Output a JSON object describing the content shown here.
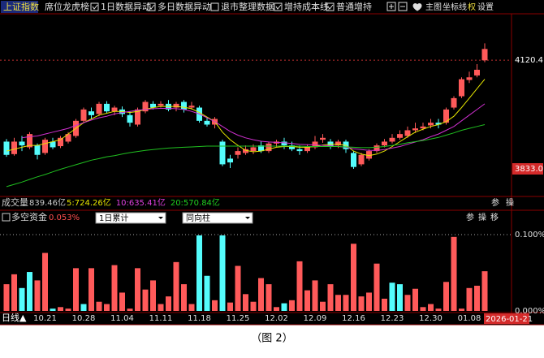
{
  "toolbar": {
    "index_name": "上证指数",
    "items": [
      {
        "label": "席位龙虎榜"
      },
      {
        "label": "1日数据异动",
        "checked": true
      },
      {
        "label": "多日数据异动",
        "checked": true
      },
      {
        "label": "退市整理数据",
        "checked": false
      },
      {
        "label": "增持成本线",
        "checked": true
      },
      {
        "label": "普通增持",
        "checked": true
      }
    ],
    "right": [
      "主图",
      "坐标线",
      "权",
      "设置"
    ]
  },
  "volume_row": {
    "label": "成交量",
    "total": "839.46亿",
    "ma": [
      {
        "text": "5:724.26亿",
        "color": "#e6e600"
      },
      {
        "text": "10:635.41亿",
        "color": "#e040e0"
      },
      {
        "text": "20:570.84亿",
        "color": "#20d020"
      }
    ],
    "icons": [
      "参",
      "操"
    ]
  },
  "chart_data": [
    {
      "type": "candlestick",
      "categories": [
        null,
        null,
        null,
        null,
        null,
        "10.21",
        null,
        null,
        null,
        null,
        "10.28",
        null,
        null,
        null,
        null,
        "11.04",
        null,
        null,
        null,
        null,
        "11.11",
        null,
        null,
        null,
        null,
        "11.18",
        null,
        null,
        null,
        null,
        "11.25",
        null,
        null,
        null,
        null,
        "12.02",
        null,
        null,
        null,
        null,
        "12.09",
        null,
        null,
        null,
        null,
        "12.16",
        null,
        null,
        null,
        null,
        "12.23",
        null,
        null,
        null,
        null,
        "12.30",
        null,
        null,
        null,
        null,
        "01.08",
        null,
        null
      ],
      "open": [
        3905,
        3872,
        3905,
        3890,
        3895,
        3875,
        3905,
        3893,
        3905,
        3920,
        3960,
        3985,
        3978,
        4005,
        3985,
        3990,
        3975,
        3950,
        3985,
        4005,
        4000,
        4005,
        3995,
        4010,
        3995,
        3995,
        3960,
        3950,
        3905,
        3860,
        3870,
        3875,
        3880,
        3895,
        3880,
        3900,
        3905,
        3895,
        3885,
        3880,
        3890,
        3910,
        3905,
        3895,
        3905,
        3875,
        3845,
        3860,
        3880,
        3895,
        3905,
        3915,
        3920,
        3935,
        3940,
        3948,
        3955,
        3955,
        3995,
        4025,
        4068,
        4080,
        4120
      ],
      "high": [
        3912,
        3915,
        3920,
        3930,
        3900,
        3915,
        3915,
        3920,
        3930,
        3965,
        3995,
        3995,
        4010,
        4012,
        4000,
        3998,
        3985,
        3995,
        4015,
        4012,
        4012,
        4015,
        4010,
        4015,
        4010,
        4000,
        3970,
        3970,
        3910,
        3870,
        3890,
        3895,
        3898,
        3905,
        3905,
        3910,
        3915,
        3905,
        3895,
        3898,
        3920,
        3925,
        3912,
        3910,
        3910,
        3880,
        3875,
        3885,
        3900,
        3912,
        3925,
        3935,
        3945,
        3955,
        3955,
        3965,
        3965,
        3995,
        4025,
        4075,
        4090,
        4110,
        4165
      ],
      "low": [
        3865,
        3868,
        3880,
        3885,
        3858,
        3870,
        3885,
        3888,
        3900,
        3915,
        3955,
        3965,
        3972,
        3980,
        3975,
        3970,
        3945,
        3945,
        3980,
        3990,
        3995,
        3985,
        3985,
        3982,
        3990,
        3955,
        3945,
        3940,
        3840,
        3835,
        3860,
        3870,
        3872,
        3875,
        3875,
        3890,
        3885,
        3880,
        3870,
        3875,
        3885,
        3902,
        3885,
        3888,
        3875,
        3833,
        3840,
        3855,
        3875,
        3890,
        3900,
        3910,
        3915,
        3928,
        3935,
        3940,
        3940,
        3950,
        3990,
        4020,
        4060,
        4075,
        4115
      ],
      "close": [
        3870,
        3905,
        3895,
        3925,
        3870,
        3910,
        3890,
        3915,
        3925,
        3960,
        3990,
        3975,
        4005,
        3985,
        3995,
        3978,
        3955,
        3990,
        4010,
        3995,
        4005,
        3990,
        4005,
        3990,
        4000,
        3960,
        3950,
        3965,
        3845,
        3850,
        3880,
        3885,
        3890,
        3880,
        3900,
        3905,
        3895,
        3885,
        3880,
        3890,
        3905,
        3915,
        3892,
        3905,
        3885,
        3838,
        3870,
        3880,
        3895,
        3905,
        3915,
        3925,
        3935,
        3940,
        3945,
        3955,
        3950,
        3990,
        4020,
        4070,
        4075,
        4095,
        4150
      ],
      "up_color": "#ff5a5a",
      "down_color": "#54fcfc",
      "lines": [
        {
          "color": "#e6e600",
          "values": [
            3880,
            3885,
            3890,
            3895,
            3895,
            3900,
            3905,
            3910,
            3925,
            3940,
            3955,
            3965,
            3975,
            3980,
            3985,
            3985,
            3982,
            3985,
            3990,
            3995,
            3998,
            3998,
            3998,
            3996,
            3992,
            3982,
            3970,
            3958,
            3930,
            3910,
            3895,
            3882,
            3878,
            3880,
            3885,
            3890,
            3892,
            3892,
            3890,
            3890,
            3892,
            3896,
            3898,
            3898,
            3895,
            3880,
            3872,
            3868,
            3872,
            3880,
            3892,
            3905,
            3918,
            3930,
            3938,
            3945,
            3950,
            3958,
            3972,
            3995,
            4020,
            4045,
            4070
          ]
        },
        {
          "color": "#d030d0",
          "values": [
            null,
            null,
            3915,
            3918,
            3920,
            3925,
            3930,
            3935,
            3940,
            3948,
            3955,
            3962,
            3968,
            3972,
            3978,
            3982,
            3985,
            3988,
            3990,
            3992,
            3993,
            3993,
            3992,
            3990,
            3985,
            3978,
            3968,
            3958,
            3945,
            3932,
            3922,
            3915,
            3910,
            3906,
            3904,
            3903,
            3902,
            3900,
            3898,
            3897,
            3896,
            3895,
            3894,
            3892,
            3890,
            3886,
            3884,
            3882,
            3882,
            3884,
            3888,
            3892,
            3898,
            3904,
            3910,
            3918,
            3925,
            3935,
            3945,
            3960,
            3975,
            3990,
            4005
          ]
        },
        {
          "color": "#20c020",
          "values": [
            3786,
            3792,
            3798,
            3805,
            3812,
            3818,
            3825,
            3832,
            3838,
            3844,
            3850,
            3856,
            3860,
            3865,
            3868,
            3872,
            3876,
            3879,
            3882,
            3884,
            3886,
            3888,
            3889,
            3890,
            3891,
            3892,
            3893,
            3893,
            3893,
            3893,
            3893,
            3893,
            3893,
            3893,
            3893,
            3893,
            3893,
            3893,
            3893,
            3892,
            3892,
            3892,
            3892,
            3892,
            3891,
            3890,
            3889,
            3889,
            3890,
            3892,
            3895,
            3898,
            3902,
            3905,
            3908,
            3912,
            3916,
            3922,
            3928,
            3935,
            3940,
            3945,
            3950
          ]
        }
      ],
      "ylim": [
        3760,
        4243
      ],
      "yticks": [
        4120.4,
        {
          "value": 3833,
          "label": "3833.0"
        }
      ],
      "tick_lines": [
        true,
        false
      ],
      "tick_box": [
        false,
        true
      ],
      "tick_box_color": "#d42a2a"
    },
    {
      "type": "bar",
      "title": "多空资金",
      "current": "0.053%",
      "dropdowns": [
        "1日累计",
        "同向柱"
      ],
      "icons": [
        "参",
        "操",
        "移"
      ],
      "values": [
        0.035,
        0.048,
        0.03,
        0.051,
        0.04,
        0.076,
        0.003,
        0.005,
        0.003,
        0.056,
        0.009,
        0.056,
        0.012,
        0.009,
        0.06,
        0.024,
        0.003,
        0.056,
        0.028,
        0.04,
        0.009,
        0.019,
        0.064,
        0.035,
        0.009,
        0.099,
        0.046,
        0.014,
        0.099,
        0.011,
        0.059,
        0.022,
        0.012,
        0.043,
        0.035,
        0.005,
        0.01,
        0.014,
        0.065,
        0.027,
        0.04,
        0.012,
        0.035,
        0.021,
        0.021,
        0.088,
        0.019,
        0.024,
        0.062,
        0.016,
        0.037,
        0.035,
        0.021,
        0.029,
        0.005,
        0.009,
        0.003,
        0.038,
        0.097,
        0.003,
        0.03,
        0.033,
        0.052
      ],
      "bar_colors": [
        "#ff5a5a",
        "#ff5a5a",
        "#54fcfc",
        "#54fcfc",
        "#ff5a5a",
        "#ff5a5a",
        "#54fcfc",
        "#ff5a5a",
        "#ff5a5a",
        "#ff5a5a",
        "#54fcfc",
        "#ff5a5a",
        "#ff5a5a",
        "#ff5a5a",
        "#ff5a5a",
        "#ff5a5a",
        "#ff5a5a",
        "#ff5a5a",
        "#ff5a5a",
        "#ff5a5a",
        "#ff5a5a",
        "#ff5a5a",
        "#ff5a5a",
        "#ff5a5a",
        "#ff5a5a",
        "#54fcfc",
        "#54fcfc",
        "#ff5a5a",
        "#54fcfc",
        "#ff5a5a",
        "#ff5a5a",
        "#ff5a5a",
        "#ff5a5a",
        "#ff5a5a",
        "#ff5a5a",
        "#ff5a5a",
        "#54fcfc",
        "#ff5a5a",
        "#ff5a5a",
        "#ff5a5a",
        "#ff5a5a",
        "#ff5a5a",
        "#ff5a5a",
        "#ff5a5a",
        "#ff5a5a",
        "#ff5a5a",
        "#ff5a5a",
        "#ff5a5a",
        "#ff5a5a",
        "#ff5a5a",
        "#54fcfc",
        "#54fcfc",
        "#ff5a5a",
        "#ff5a5a",
        "#ff5a5a",
        "#ff5a5a",
        "#ff5a5a",
        "#ff5a5a",
        "#ff5a5a",
        "#ff5a5a",
        "#ff5a5a",
        "#ff5a5a",
        "#ff5a5a"
      ],
      "ylim": [
        0,
        0.1
      ],
      "yticks": [
        {
          "value": 0.1,
          "label": "0.100%"
        },
        {
          "value": 0,
          "label": "0.000%"
        }
      ],
      "tick_lines": [
        true,
        false
      ]
    }
  ],
  "footer": {
    "period": "日线▲",
    "cursor_date": "2026-01-21",
    "caption": "（图 2）"
  }
}
